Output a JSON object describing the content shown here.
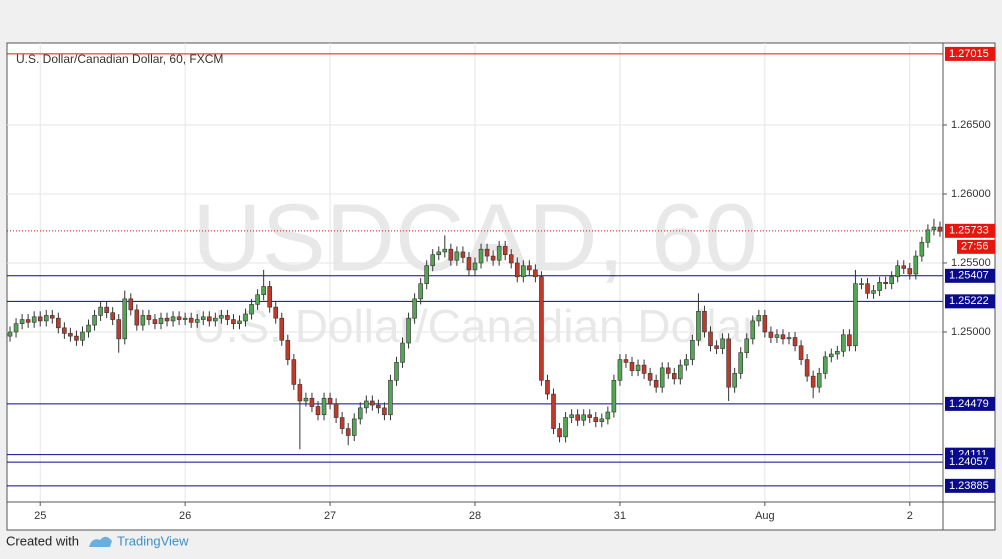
{
  "chart_data": {
    "type": "candlestick",
    "title": "U.S. Dollar/Canadian Dollar, 60, FXCM",
    "watermark": "USDCAD, 60",
    "watermark_subtitle": "U.S. Dollar/Canadian Dollar",
    "up_color": "#53a653",
    "down_color": "#c0392b",
    "categories": [
      null,
      null,
      null,
      null,
      null,
      "25",
      null,
      null,
      null,
      null,
      null,
      null,
      null,
      null,
      null,
      null,
      null,
      null,
      null,
      null,
      null,
      null,
      null,
      null,
      null,
      null,
      null,
      null,
      null,
      "26",
      null,
      null,
      null,
      null,
      null,
      null,
      null,
      null,
      null,
      null,
      null,
      null,
      null,
      null,
      null,
      null,
      null,
      null,
      null,
      null,
      null,
      null,
      null,
      "27",
      null,
      null,
      null,
      null,
      null,
      null,
      null,
      null,
      null,
      null,
      null,
      null,
      null,
      null,
      null,
      null,
      null,
      null,
      null,
      null,
      null,
      null,
      null,
      "28",
      null,
      null,
      null,
      null,
      null,
      null,
      null,
      null,
      null,
      null,
      null,
      null,
      null,
      null,
      null,
      null,
      null,
      null,
      null,
      null,
      null,
      null,
      null,
      "31",
      null,
      null,
      null,
      null,
      null,
      null,
      null,
      null,
      null,
      null,
      null,
      null,
      null,
      null,
      null,
      null,
      null,
      null,
      null,
      null,
      null,
      null,
      null,
      "Aug",
      null,
      null,
      null,
      null,
      null,
      null,
      null,
      null,
      null,
      null,
      null,
      null,
      null,
      null,
      null,
      null,
      null,
      null,
      null,
      null,
      null,
      null,
      null,
      "2",
      null,
      null,
      null,
      null,
      null
    ],
    "open": [
      1.2497,
      1.25,
      1.2506,
      1.2509,
      1.2507,
      1.2511,
      1.2508,
      1.2512,
      1.251,
      1.2503,
      1.2499,
      1.2497,
      1.2494,
      1.25,
      1.2505,
      1.2512,
      1.2518,
      1.2514,
      1.2509,
      1.2495,
      1.2524,
      1.2516,
      1.2505,
      1.2512,
      1.2509,
      1.2506,
      1.251,
      1.2508,
      1.2511,
      1.2509,
      1.251,
      1.2507,
      1.2509,
      1.2511,
      1.2508,
      1.251,
      1.2512,
      1.2509,
      1.2506,
      1.2508,
      1.2513,
      1.252,
      1.2527,
      1.2533,
      1.2518,
      1.251,
      1.2494,
      1.248,
      1.2462,
      1.245,
      1.2452,
      1.2446,
      1.244,
      1.2452,
      1.2448,
      1.2438,
      1.243,
      1.2425,
      1.2437,
      1.2445,
      1.245,
      1.2447,
      1.2445,
      1.244,
      1.2465,
      1.2478,
      1.2492,
      1.251,
      1.2524,
      1.2535,
      1.2548,
      1.2556,
      1.2558,
      1.256,
      1.2552,
      1.2558,
      1.2554,
      1.2545,
      1.255,
      1.256,
      1.2555,
      1.2552,
      1.2562,
      1.2556,
      1.255,
      1.254,
      1.2548,
      1.2545,
      1.254,
      1.2465,
      1.2455,
      1.243,
      1.2424,
      1.2438,
      1.244,
      1.2436,
      1.244,
      1.2438,
      1.2435,
      1.2437,
      1.2442,
      1.2465,
      1.248,
      1.2478,
      1.2472,
      1.2476,
      1.247,
      1.2465,
      1.246,
      1.2474,
      1.247,
      1.2466,
      1.2476,
      1.248,
      1.2494,
      1.2515,
      1.25,
      1.249,
      1.2488,
      1.2495,
      1.246,
      1.247,
      1.2485,
      1.2495,
      1.2508,
      1.2512,
      1.25,
      1.2496,
      1.2498,
      1.2495,
      1.2496,
      1.249,
      1.248,
      1.2468,
      1.246,
      1.247,
      1.2482,
      1.2484,
      1.2486,
      1.2498,
      1.249,
      1.2535,
      1.2535,
      1.2528,
      1.253,
      1.2536,
      1.2535,
      1.254,
      1.2548,
      1.2546,
      1.2542,
      1.2555,
      1.2565,
      1.2574,
      1.2576
    ],
    "high": [
      1.2504,
      1.251,
      1.2513,
      1.2513,
      1.2515,
      1.2515,
      1.2516,
      1.2516,
      1.2514,
      1.2507,
      1.2503,
      1.2501,
      1.2504,
      1.2509,
      1.2516,
      1.2522,
      1.2522,
      1.2518,
      1.2513,
      1.253,
      1.2528,
      1.252,
      1.2516,
      1.2516,
      1.2513,
      1.2514,
      1.2514,
      1.2515,
      1.2515,
      1.2514,
      1.2514,
      1.2513,
      1.2515,
      1.2515,
      1.2514,
      1.2516,
      1.2516,
      1.2513,
      1.2512,
      1.2517,
      1.2524,
      1.2531,
      1.2545,
      1.2537,
      1.2522,
      1.2514,
      1.2498,
      1.2484,
      1.2466,
      1.2456,
      1.2456,
      1.245,
      1.2456,
      1.2456,
      1.2452,
      1.2442,
      1.2434,
      1.2441,
      1.2449,
      1.2454,
      1.2454,
      1.2451,
      1.2449,
      1.2469,
      1.2482,
      1.2496,
      1.2514,
      1.2528,
      1.2539,
      1.2552,
      1.256,
      1.2562,
      1.257,
      1.2564,
      1.2562,
      1.2562,
      1.2558,
      1.2554,
      1.2564,
      1.2564,
      1.2559,
      1.2566,
      1.2566,
      1.256,
      1.2554,
      1.2552,
      1.2552,
      1.2549,
      1.2544,
      1.2469,
      1.2459,
      1.2434,
      1.2442,
      1.2444,
      1.2444,
      1.2444,
      1.2444,
      1.2442,
      1.2441,
      1.2446,
      1.2469,
      1.2484,
      1.2484,
      1.2482,
      1.248,
      1.248,
      1.2474,
      1.2469,
      1.2478,
      1.2478,
      1.2474,
      1.248,
      1.2484,
      1.2498,
      1.2528,
      1.2519,
      1.2504,
      1.2494,
      1.2499,
      1.2499,
      1.2474,
      1.2489,
      1.2499,
      1.2512,
      1.2516,
      1.2516,
      1.2504,
      1.2502,
      1.2502,
      1.25,
      1.25,
      1.2494,
      1.2484,
      1.2472,
      1.2474,
      1.2486,
      1.2488,
      1.249,
      1.2502,
      1.2502,
      1.2545,
      1.2539,
      1.2539,
      1.2534,
      1.254,
      1.254,
      1.2544,
      1.2552,
      1.2552,
      1.255,
      1.2559,
      1.2569,
      1.2578,
      1.2582,
      1.258
    ],
    "low": [
      1.2493,
      1.2496,
      1.2502,
      1.2503,
      1.2503,
      1.2504,
      1.2504,
      1.2506,
      1.2499,
      1.2495,
      1.2493,
      1.249,
      1.249,
      1.2496,
      1.2501,
      1.2508,
      1.251,
      1.2505,
      1.2485,
      1.2491,
      1.2512,
      1.2501,
      1.2501,
      1.2505,
      1.2502,
      1.2502,
      1.2504,
      1.2504,
      1.2505,
      1.2505,
      1.2503,
      1.2503,
      1.2505,
      1.2504,
      1.2504,
      1.2506,
      1.2505,
      1.2502,
      1.2502,
      1.2504,
      1.2509,
      1.2516,
      1.2523,
      1.2514,
      1.2506,
      1.249,
      1.2476,
      1.2458,
      1.2415,
      1.2446,
      1.2442,
      1.2436,
      1.2436,
      1.2444,
      1.2434,
      1.2426,
      1.2418,
      1.2421,
      1.2433,
      1.2441,
      1.2443,
      1.2441,
      1.2436,
      1.2436,
      1.2461,
      1.2474,
      1.2488,
      1.2506,
      1.252,
      1.2531,
      1.2544,
      1.2552,
      1.2554,
      1.2548,
      1.2548,
      1.255,
      1.2541,
      1.2541,
      1.2546,
      1.2551,
      1.2548,
      1.2548,
      1.2552,
      1.2546,
      1.2536,
      1.2536,
      1.2541,
      1.2536,
      1.2461,
      1.2451,
      1.2426,
      1.242,
      1.242,
      1.2434,
      1.2432,
      1.2432,
      1.2434,
      1.2431,
      1.2431,
      1.2433,
      1.2438,
      1.2461,
      1.2474,
      1.2468,
      1.2468,
      1.2466,
      1.2461,
      1.2456,
      1.2456,
      1.2466,
      1.2462,
      1.2462,
      1.2472,
      1.2476,
      1.249,
      1.2496,
      1.2486,
      1.2484,
      1.2484,
      1.245,
      1.2456,
      1.2466,
      1.2481,
      1.2491,
      1.2504,
      1.2496,
      1.2492,
      1.2492,
      1.2491,
      1.2491,
      1.2486,
      1.2476,
      1.2464,
      1.2452,
      1.2456,
      1.2466,
      1.2478,
      1.248,
      1.2482,
      1.2486,
      1.2486,
      1.2531,
      1.2524,
      1.2524,
      1.2526,
      1.2531,
      1.2531,
      1.2536,
      1.2542,
      1.2538,
      1.2538,
      1.2551,
      1.2561,
      1.257,
      1.2569
    ],
    "close": [
      1.25,
      1.2506,
      1.2509,
      1.2507,
      1.2511,
      1.2508,
      1.2512,
      1.251,
      1.2503,
      1.2499,
      1.2497,
      1.2494,
      1.25,
      1.2505,
      1.2512,
      1.2518,
      1.2514,
      1.2509,
      1.2495,
      1.2524,
      1.2516,
      1.2505,
      1.2512,
      1.2509,
      1.2506,
      1.251,
      1.2508,
      1.2511,
      1.2509,
      1.251,
      1.2507,
      1.2509,
      1.2511,
      1.2508,
      1.251,
      1.2512,
      1.2509,
      1.2506,
      1.2508,
      1.2513,
      1.252,
      1.2527,
      1.2533,
      1.2518,
      1.251,
      1.2494,
      1.248,
      1.2462,
      1.245,
      1.2452,
      1.2446,
      1.244,
      1.2452,
      1.2448,
      1.2438,
      1.243,
      1.2425,
      1.2437,
      1.2445,
      1.245,
      1.2447,
      1.2445,
      1.244,
      1.2465,
      1.2478,
      1.2492,
      1.251,
      1.2524,
      1.2535,
      1.2548,
      1.2556,
      1.2558,
      1.256,
      1.2552,
      1.2558,
      1.2554,
      1.2545,
      1.255,
      1.256,
      1.2555,
      1.2552,
      1.2562,
      1.2556,
      1.255,
      1.254,
      1.2548,
      1.2545,
      1.254,
      1.2465,
      1.2455,
      1.243,
      1.2424,
      1.2438,
      1.244,
      1.2436,
      1.244,
      1.2438,
      1.2435,
      1.2437,
      1.2442,
      1.2465,
      1.248,
      1.2478,
      1.2472,
      1.2476,
      1.247,
      1.2465,
      1.246,
      1.2474,
      1.247,
      1.2466,
      1.2476,
      1.248,
      1.2494,
      1.2515,
      1.25,
      1.249,
      1.2488,
      1.2495,
      1.246,
      1.247,
      1.2485,
      1.2495,
      1.2508,
      1.2512,
      1.25,
      1.2496,
      1.2498,
      1.2495,
      1.2496,
      1.249,
      1.248,
      1.2468,
      1.246,
      1.247,
      1.2482,
      1.2484,
      1.2486,
      1.2498,
      1.249,
      1.2535,
      1.2535,
      1.2528,
      1.253,
      1.2536,
      1.2535,
      1.254,
      1.2548,
      1.2546,
      1.2542,
      1.2555,
      1.2565,
      1.2574,
      1.2576,
      1.2573
    ],
    "ylim": [
      1.23768,
      1.27094
    ],
    "yticks": [
      {
        "value": 1.25,
        "label": "1.25000"
      },
      {
        "value": 1.255,
        "label": "1.25500"
      },
      {
        "value": 1.26,
        "label": "1.26000"
      },
      {
        "value": 1.265,
        "label": "1.26500"
      }
    ],
    "grid": true,
    "levels": [
      {
        "value": 1.27015,
        "color": "#e8140e"
      },
      {
        "value": 1.25407,
        "color": "#0a0a8c"
      },
      {
        "value": 1.25222,
        "color": "#0a0a8c"
      },
      {
        "value": 1.24479,
        "color": "#0a0a8c"
      },
      {
        "value": 1.24111,
        "color": "#0a0a8c"
      },
      {
        "value": 1.24057,
        "color": "#0a0a8c"
      },
      {
        "value": 1.23885,
        "color": "#0a0a8c"
      }
    ],
    "last_price": {
      "value": 1.25733,
      "countdown": "27:56",
      "color": "#e8140e"
    }
  },
  "footer": {
    "created_with": "Created with",
    "brand": "TradingView"
  }
}
